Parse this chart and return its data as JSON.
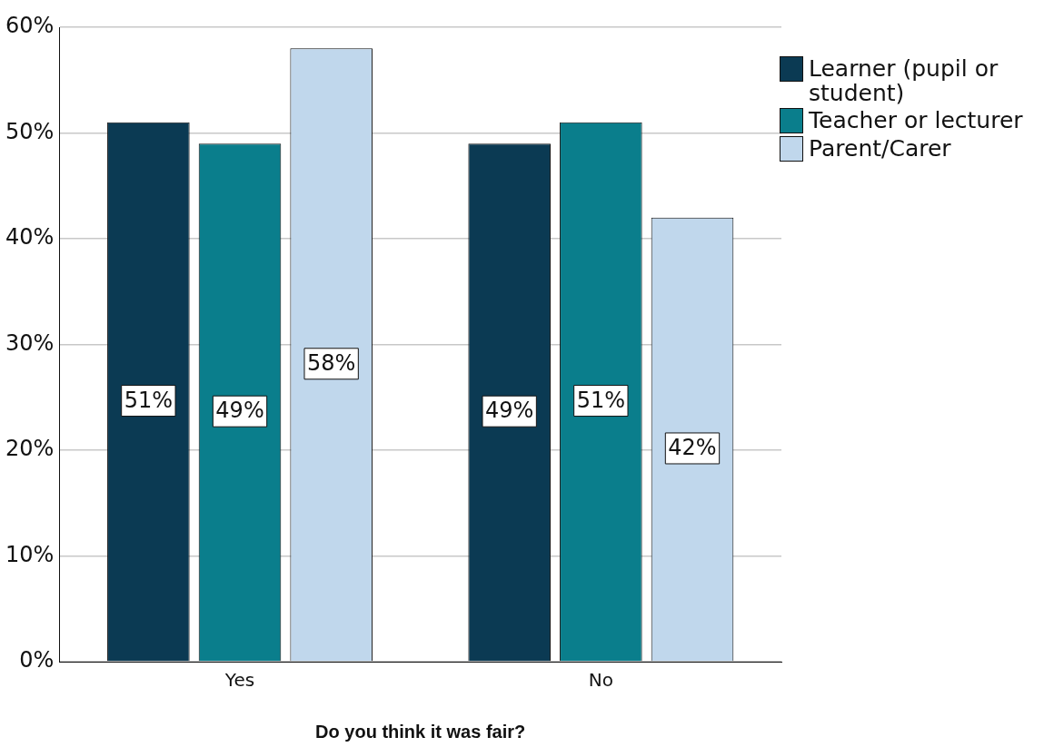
{
  "chart_data": {
    "type": "bar",
    "xlabel": "Do you think it was fair?",
    "categories": [
      "Yes",
      "No"
    ],
    "series": [
      {
        "name": "Learner (pupil or student)",
        "color": "#0b3a53",
        "values": [
          51,
          49
        ],
        "value_labels": [
          "51%",
          "49%"
        ]
      },
      {
        "name": "Teacher or lecturer",
        "color": "#0a7e8c",
        "values": [
          49,
          51
        ],
        "value_labels": [
          "49%",
          "51%"
        ]
      },
      {
        "name": "Parent/Carer",
        "color": "#c0d7ec",
        "values": [
          58,
          42
        ],
        "value_labels": [
          "58%",
          "42%"
        ]
      }
    ],
    "ylim": [
      0,
      60
    ],
    "yticks": [
      {
        "value": 0,
        "label": "0%"
      },
      {
        "value": 10,
        "label": "10%"
      },
      {
        "value": 20,
        "label": "20%"
      },
      {
        "value": 30,
        "label": "30%"
      },
      {
        "value": 40,
        "label": "40%"
      },
      {
        "value": 50,
        "label": "50%"
      },
      {
        "value": 60,
        "label": "60%"
      }
    ],
    "grid": "y",
    "legend": "right"
  }
}
